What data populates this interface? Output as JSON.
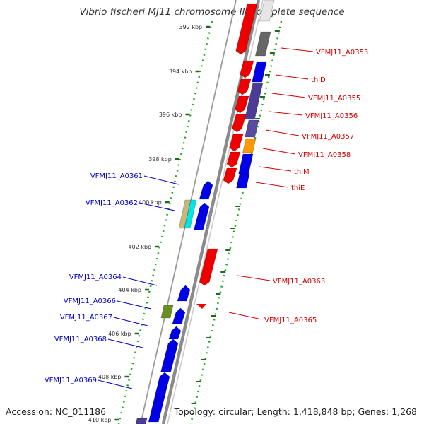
{
  "title": "Vibrio fischeri MJ11 chromosome II, complete sequence",
  "footer": {
    "accession": "Accession: NC_011186",
    "summary": "Topology: circular; Length: 1,418,848 bp; Genes: 1,268"
  },
  "colors": {
    "forward": "#ee0000",
    "reverse": "#0000e6",
    "forward_label": "#d40000",
    "reverse_label": "#0000c8",
    "backbone": "#8a8a8a",
    "dotted_track": "#22aa22",
    "tick_mark": "#226622",
    "cyan_feature": "#00e5e5",
    "tan_feature": "#c8b67a",
    "olive_feature": "#6b8e23",
    "orange_feature": "#ff9900",
    "purple_feature": "#4b3d96",
    "grey_feature": "#666666"
  },
  "scale_ticks": [
    "392 kbp",
    "394 kbp",
    "396 kbp",
    "398 kbp",
    "400 kbp",
    "402 kbp",
    "404 kbp",
    "406 kbp",
    "408 kbp",
    "410 kbp"
  ],
  "forward_genes": [
    {
      "name": "VFMJ11_A0353",
      "strand": "+"
    },
    {
      "name": "thiD",
      "strand": "+"
    },
    {
      "name": "VFMJ11_A0355",
      "strand": "+"
    },
    {
      "name": "VFMJ11_A0356",
      "strand": "+"
    },
    {
      "name": "VFMJ11_A0357",
      "strand": "+"
    },
    {
      "name": "VFMJ11_A0358",
      "strand": "+"
    },
    {
      "name": "thiM",
      "strand": "+"
    },
    {
      "name": "thiE",
      "strand": "+"
    },
    {
      "name": "VFMJ11_A0363",
      "strand": "+"
    },
    {
      "name": "VFMJ11_A0365",
      "strand": "+"
    }
  ],
  "reverse_genes": [
    {
      "name": "VFMJ11_A0361",
      "strand": "-"
    },
    {
      "name": "VFMJ11_A0362",
      "strand": "-"
    },
    {
      "name": "VFMJ11_A0364",
      "strand": "-"
    },
    {
      "name": "VFMJ11_A0366",
      "strand": "-"
    },
    {
      "name": "VFMJ11_A0367",
      "strand": "-"
    },
    {
      "name": "VFMJ11_A0368",
      "strand": "-"
    },
    {
      "name": "VFMJ11_A0369",
      "strand": "-"
    }
  ]
}
